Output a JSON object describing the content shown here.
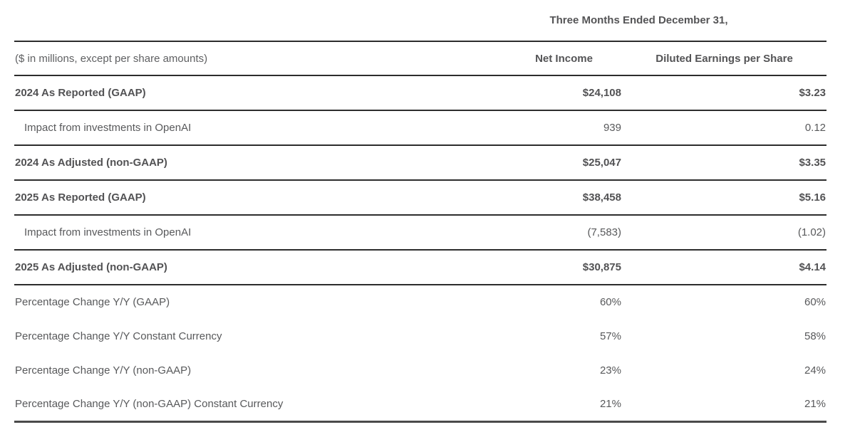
{
  "table": {
    "title": "Three Months Ended December 31,",
    "caption": "($ in millions, except per share amounts)",
    "columns": [
      "Net Income",
      "Diluted Earnings per Share"
    ],
    "rows": [
      {
        "label": "2024 As Reported (GAAP)",
        "net_income": "$24,108",
        "eps": "$3.23",
        "bold": true,
        "indent": false,
        "rule_below": true
      },
      {
        "label": "Impact from investments in OpenAI",
        "net_income": "939",
        "eps": "0.12",
        "bold": false,
        "indent": true,
        "rule_below": true
      },
      {
        "label": "2024 As Adjusted (non-GAAP)",
        "net_income": "$25,047",
        "eps": "$3.35",
        "bold": true,
        "indent": false,
        "rule_below": true
      },
      {
        "label": "2025 As Reported (GAAP)",
        "net_income": "$38,458",
        "eps": "$5.16",
        "bold": true,
        "indent": false,
        "rule_below": true
      },
      {
        "label": "Impact from investments in OpenAI",
        "net_income": "(7,583)",
        "eps": "(1.02)",
        "bold": false,
        "indent": true,
        "rule_below": true
      },
      {
        "label": "2025 As Adjusted (non-GAAP)",
        "net_income": "$30,875",
        "eps": "$4.14",
        "bold": true,
        "indent": false,
        "rule_below": true
      },
      {
        "label": "Percentage Change Y/Y (GAAP)",
        "net_income": "60%",
        "eps": "60%",
        "bold": false,
        "indent": false,
        "rule_below": false
      },
      {
        "label": "Percentage Change Y/Y Constant Currency",
        "net_income": "57%",
        "eps": "58%",
        "bold": false,
        "indent": false,
        "rule_below": false
      },
      {
        "label": "Percentage Change Y/Y (non-GAAP)",
        "net_income": "23%",
        "eps": "24%",
        "bold": false,
        "indent": false,
        "rule_below": false
      },
      {
        "label": "Percentage Change Y/Y (non-GAAP) Constant Currency",
        "net_income": "21%",
        "eps": "21%",
        "bold": false,
        "indent": false,
        "rule_below": false
      }
    ]
  },
  "colors": {
    "text_regular": "#58595b",
    "text_bold": "#525254",
    "rule": "#2d2d2d",
    "bottom_border": "#4a4a4a",
    "background": "#ffffff"
  }
}
